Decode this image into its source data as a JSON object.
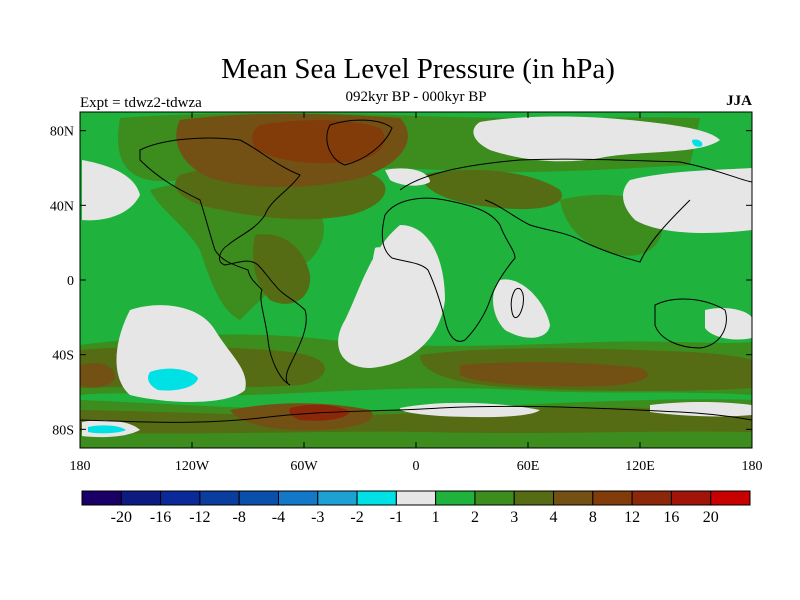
{
  "title": "Mean Sea Level Pressure (in hPa)",
  "subtitle": "092kyr BP - 000kyr BP",
  "expt_label": "Expt = tdwz2-tdwza",
  "season": "JJA",
  "map": {
    "lat_ticks": [
      "80N",
      "40N",
      "0",
      "40S",
      "80S"
    ],
    "lon_ticks": [
      "180",
      "120W",
      "60W",
      "0",
      "60E",
      "120E",
      "180"
    ]
  },
  "colorbar": {
    "labels": [
      "-20",
      "-16",
      "-12",
      "-8",
      "-4",
      "-3",
      "-2",
      "-1",
      "1",
      "2",
      "3",
      "4",
      "8",
      "12",
      "16",
      "20"
    ],
    "colors": [
      "#1a0066",
      "#0d1a80",
      "#0a2a99",
      "#0a3d9e",
      "#0a50aa",
      "#1478c8",
      "#1fa0d2",
      "#00e1e6",
      "#e6e6e6",
      "#1fb23c",
      "#3c8c1e",
      "#556b14",
      "#735014",
      "#823c0a",
      "#8c280a",
      "#a0140a",
      "#c80000"
    ]
  },
  "palette": {
    "green": "#1fb23c",
    "dark_green": "#3c8c1e",
    "olive": "#556b14",
    "brown": "#735014",
    "dark_brown": "#823c0a",
    "grey": "#e6e6e6",
    "cyan": "#00e1e6",
    "red_brown": "#8c280a"
  }
}
